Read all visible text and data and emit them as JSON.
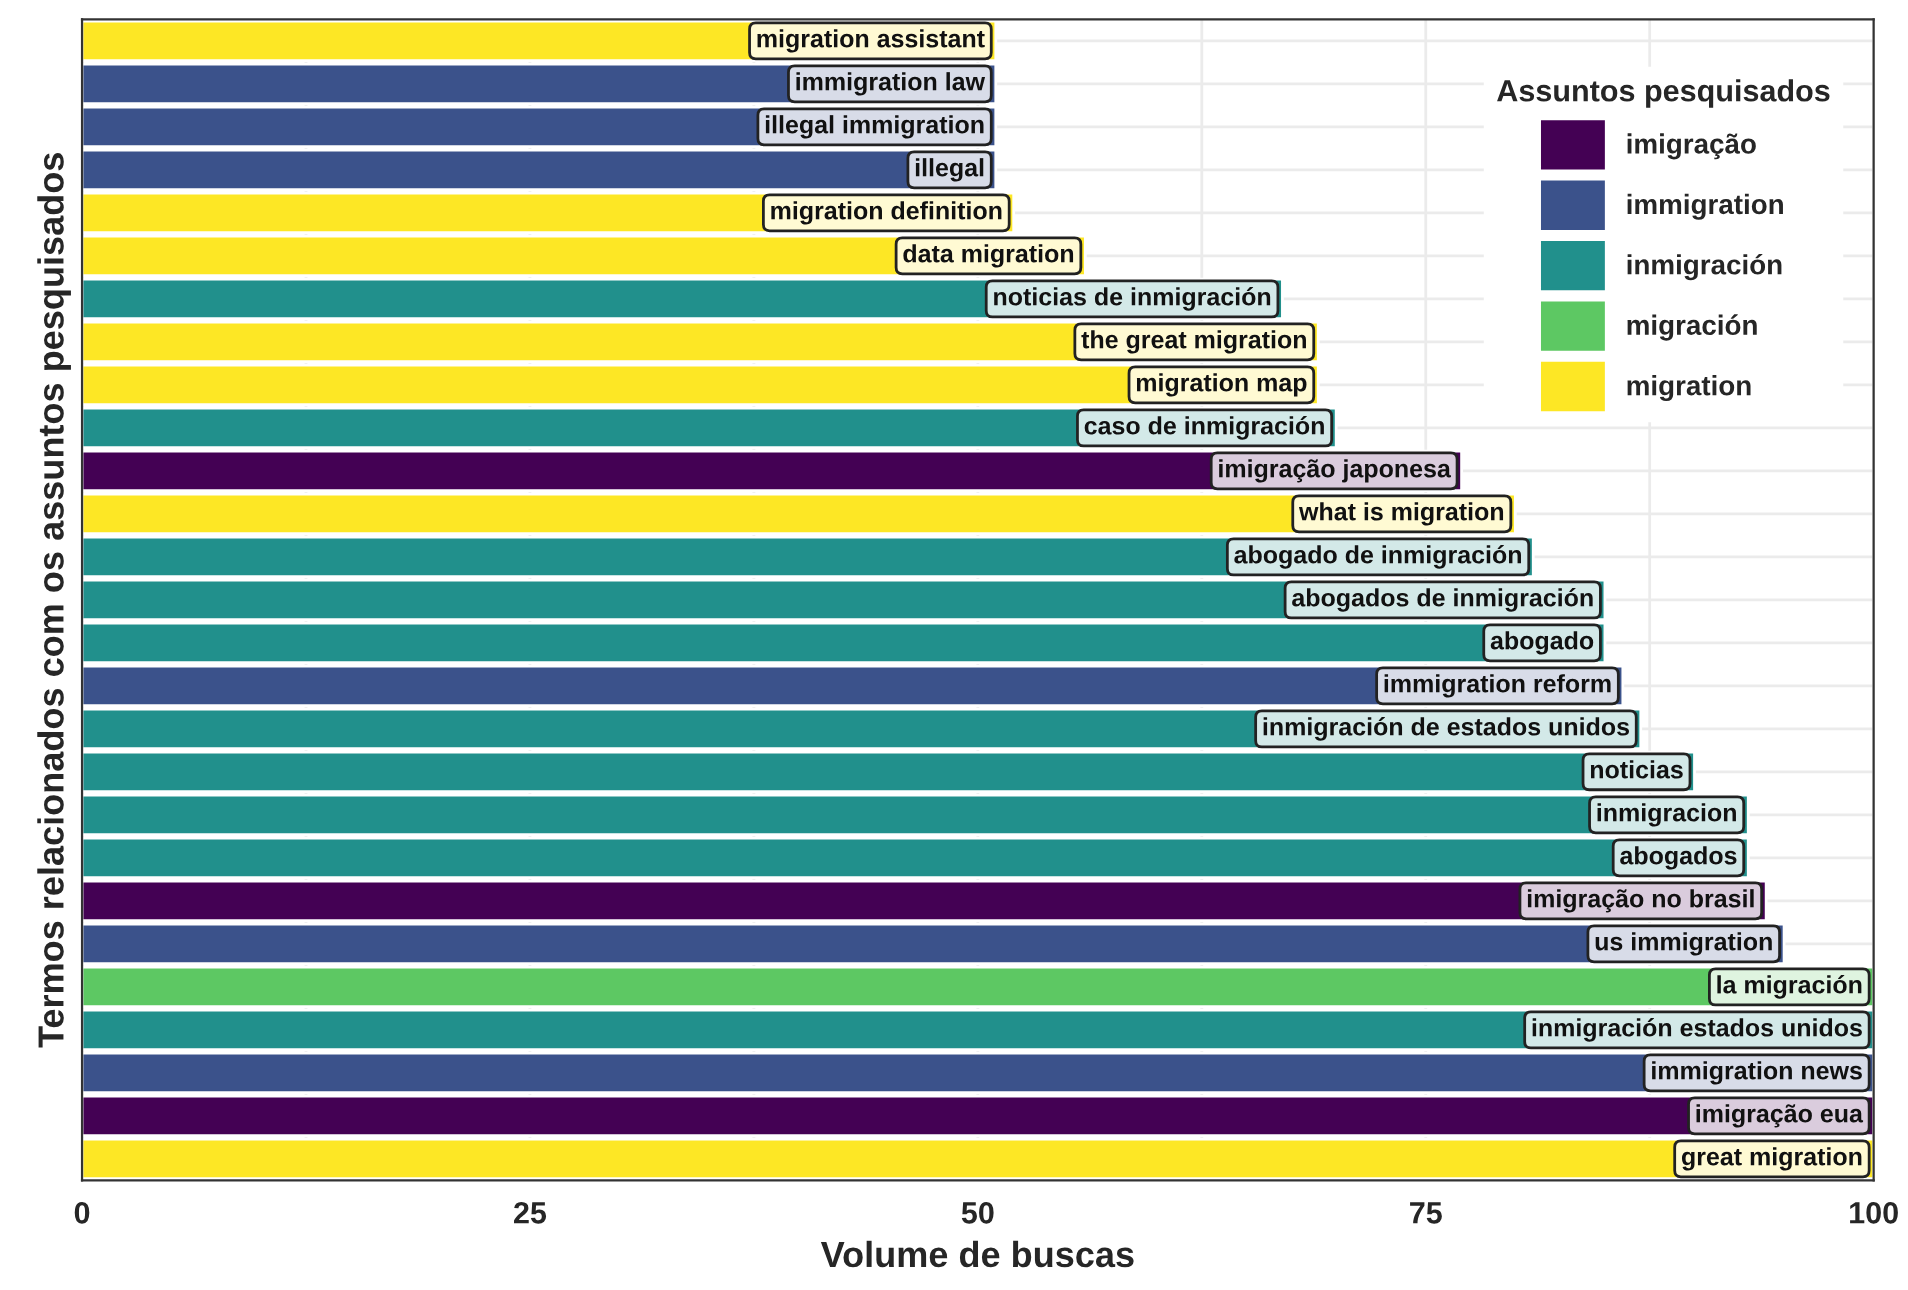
{
  "chart_data": {
    "type": "bar",
    "orientation": "horizontal",
    "xlabel": "Volume de buscas",
    "ylabel": "Termos relacionados com os assuntos pesquisados",
    "legend_title": "Assuntos pesquisados",
    "legend": "top right",
    "grid": true,
    "tick_labels": "x",
    "categories": [
      "migration assistant",
      "immigration law",
      "illegal immigration",
      "illegal",
      "migration definition",
      "data migration",
      "noticias de inmigración",
      "the great migration",
      "migration map",
      "caso de inmigración",
      "imigração japonesa",
      "what is migration",
      "abogado de inmigración",
      "abogados de inmigración",
      "abogado",
      "immigration reform",
      "inmigración de estados unidos",
      "noticias",
      "inmigracion",
      "abogados",
      "imigração no brasil",
      "us immigration",
      "la migración",
      "inmigración estados unidos",
      "immigration news",
      "imigração eua",
      "great migration"
    ],
    "xlim": [
      0,
      100
    ],
    "xticks": [
      0,
      25,
      50,
      75,
      100
    ],
    "series": [
      {
        "name": "imigração",
        "color": "#440154",
        "values": [
          null,
          null,
          null,
          null,
          null,
          null,
          null,
          null,
          null,
          null,
          77,
          null,
          null,
          null,
          null,
          null,
          null,
          null,
          null,
          null,
          94,
          null,
          null,
          null,
          null,
          100,
          null
        ]
      },
      {
        "name": "immigration",
        "color": "#3b528b",
        "values": [
          null,
          51,
          51,
          51,
          null,
          null,
          null,
          null,
          null,
          null,
          null,
          null,
          null,
          null,
          null,
          86,
          null,
          null,
          null,
          null,
          null,
          95,
          null,
          null,
          100,
          null,
          null
        ]
      },
      {
        "name": "inmigración",
        "color": "#21908c",
        "values": [
          null,
          null,
          null,
          null,
          null,
          null,
          67,
          null,
          null,
          70,
          null,
          null,
          81,
          85,
          85,
          null,
          87,
          90,
          93,
          93,
          null,
          null,
          null,
          100,
          null,
          null,
          null
        ]
      },
      {
        "name": "migración",
        "color": "#5dc863",
        "values": [
          null,
          null,
          null,
          null,
          null,
          null,
          null,
          null,
          null,
          null,
          null,
          null,
          null,
          null,
          null,
          null,
          null,
          null,
          null,
          null,
          null,
          null,
          100,
          null,
          null,
          null,
          null
        ]
      },
      {
        "name": "migration",
        "color": "#fde725",
        "values": [
          51,
          null,
          null,
          null,
          52,
          56,
          null,
          69,
          69,
          null,
          null,
          80,
          null,
          null,
          null,
          null,
          null,
          null,
          null,
          null,
          null,
          null,
          null,
          null,
          null,
          null,
          100
        ]
      }
    ]
  }
}
